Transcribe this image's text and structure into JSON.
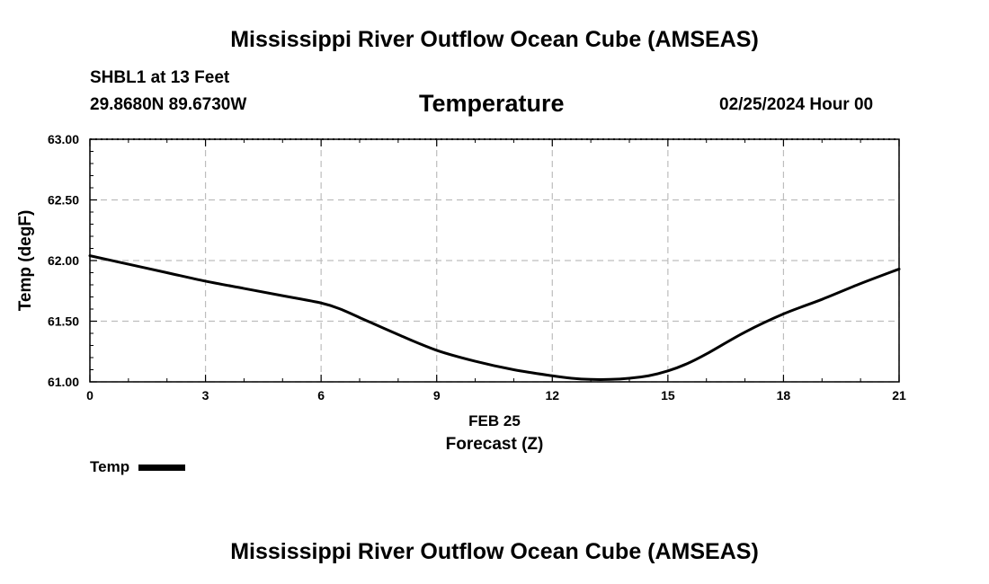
{
  "header": {
    "title": "Mississippi River Outflow Ocean Cube (AMSEAS)",
    "station": "SHBL1 at 13 Feet",
    "coords": "29.8680N  89.6730W",
    "subtitle": "Temperature",
    "datetime": "02/25/2024 Hour 00"
  },
  "footer": {
    "title": "Mississippi River Outflow Ocean Cube (AMSEAS)"
  },
  "legend": {
    "label": "Temp"
  },
  "chart_data": {
    "type": "line",
    "title": "Temperature",
    "xlabel": "Forecast (Z)",
    "xlabel_date": "FEB 25",
    "ylabel": "Temp (degF)",
    "xlim": [
      0,
      21
    ],
    "ylim": [
      61.0,
      63.0
    ],
    "xticks": [
      "0",
      "3",
      "6",
      "9",
      "12",
      "15",
      "18",
      "21"
    ],
    "yticks": [
      "61.00",
      "61.50",
      "62.00",
      "62.50",
      "63.00"
    ],
    "grid": true,
    "legend_position": "bottom-left",
    "series": [
      {
        "name": "Temp",
        "color": "#000000",
        "x": [
          0,
          1,
          2,
          3,
          4,
          5,
          6,
          6.5,
          7,
          8,
          9,
          10,
          11,
          12,
          12.5,
          13,
          13.5,
          14,
          14.5,
          15,
          15.5,
          16,
          17,
          18,
          19,
          20,
          21
        ],
        "y": [
          62.04,
          61.97,
          61.9,
          61.83,
          61.77,
          61.71,
          61.65,
          61.6,
          61.53,
          61.39,
          61.26,
          61.17,
          61.1,
          61.05,
          61.03,
          61.02,
          61.02,
          61.03,
          61.05,
          61.09,
          61.15,
          61.23,
          61.41,
          61.56,
          61.68,
          61.81,
          61.93
        ]
      }
    ]
  }
}
